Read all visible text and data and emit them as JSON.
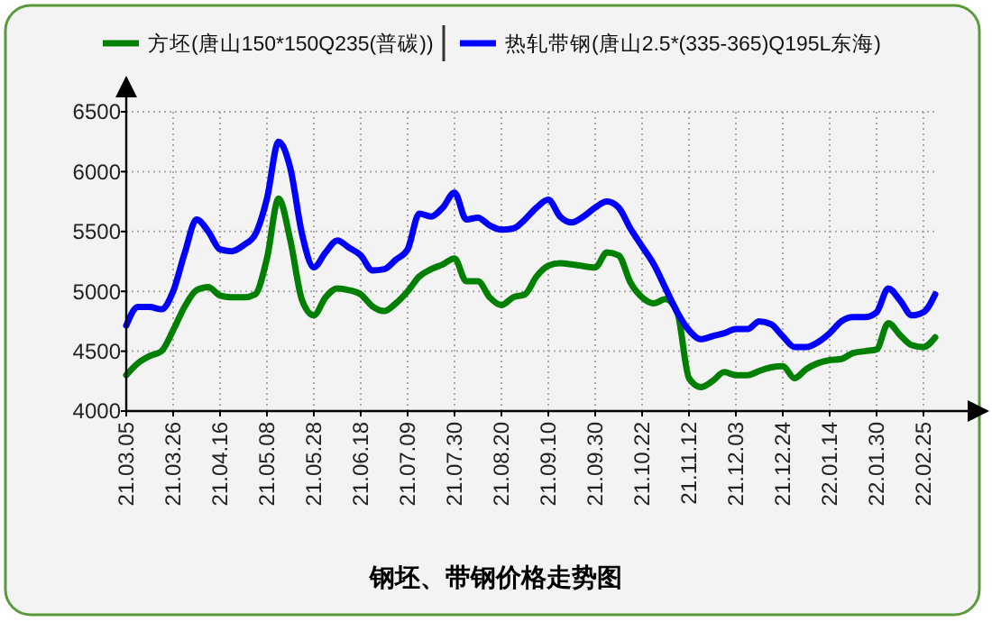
{
  "chart_data": {
    "type": "line",
    "title": "钢坯、带钢价格走势图",
    "categories": [
      "21.03.05",
      null,
      null,
      null,
      "21.03.26",
      null,
      null,
      null,
      "21.04.16",
      null,
      null,
      null,
      "21.05.08",
      null,
      null,
      null,
      "21.05.28",
      null,
      null,
      null,
      "21.06.18",
      null,
      null,
      null,
      "21.07.09",
      null,
      null,
      null,
      "21.07.30",
      null,
      null,
      null,
      "21.08.20",
      null,
      null,
      null,
      "21.09.10",
      null,
      null,
      null,
      "21.09.30",
      null,
      null,
      null,
      "21.10.22",
      null,
      null,
      null,
      "21.11.12",
      null,
      null,
      null,
      "21.12.03",
      null,
      null,
      null,
      "21.12.24",
      null,
      null,
      null,
      "22.01.14",
      null,
      null,
      null,
      "22.01.30",
      null,
      null,
      null,
      "22.02.25",
      null
    ],
    "series": [
      {
        "name": "方坯(唐山150*150Q235(普碳))",
        "color": "#008000",
        "values": [
          4300,
          4400,
          4460,
          4500,
          4675,
          4875,
          5010,
          5035,
          4965,
          4950,
          4950,
          4975,
          5275,
          5775,
          5425,
          4925,
          4800,
          4950,
          5025,
          5010,
          4975,
          4875,
          4835,
          4900,
          5000,
          5125,
          5185,
          5225,
          5275,
          5085,
          5085,
          4950,
          4885,
          4950,
          4975,
          5125,
          5215,
          5235,
          5225,
          5210,
          5200,
          5325,
          5300,
          5075,
          4950,
          4900,
          4935,
          4825,
          4275,
          4200,
          4250,
          4325,
          4300,
          4300,
          4335,
          4365,
          4375,
          4275,
          4350,
          4400,
          4425,
          4435,
          4485,
          4500,
          4515,
          4735,
          4635,
          4550,
          4535,
          4615
        ]
      },
      {
        "name": "热轧带钢(唐山2.5*(335-365)Q195L东海)",
        "color": "#0000ff",
        "values": [
          4715,
          4870,
          4870,
          4850,
          5000,
          5325,
          5600,
          5500,
          5350,
          5335,
          5385,
          5475,
          5775,
          6250,
          6025,
          5475,
          5200,
          5325,
          5425,
          5365,
          5300,
          5175,
          5185,
          5265,
          5350,
          5650,
          5625,
          5700,
          5825,
          5600,
          5615,
          5550,
          5515,
          5525,
          5600,
          5700,
          5765,
          5625,
          5575,
          5625,
          5700,
          5750,
          5700,
          5525,
          5375,
          5225,
          5025,
          4825,
          4675,
          4600,
          4625,
          4650,
          4685,
          4685,
          4750,
          4725,
          4625,
          4535,
          4535,
          4575,
          4650,
          4750,
          4785,
          4785,
          4825,
          5025,
          4925,
          4800,
          4825,
          4975
        ]
      }
    ],
    "ylim": [
      4000,
      6500
    ],
    "yticks": [
      4000,
      4500,
      5000,
      5500,
      6000,
      6500
    ],
    "grid": true,
    "legend": "top",
    "marker": "none",
    "line_style": "solid"
  }
}
